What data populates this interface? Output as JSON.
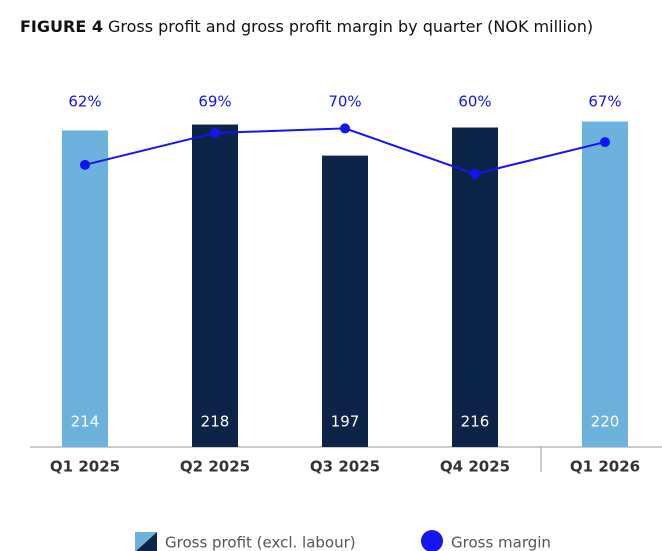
{
  "chart_data": {
    "type": "bar",
    "figure_label": "FIGURE 4",
    "title": "Gross profit and gross profit margin by quarter (NOK million)",
    "categories": [
      "Q1 2025",
      "Q2 2025",
      "Q3 2025",
      "Q4 2025",
      "Q1 2026"
    ],
    "series": [
      {
        "name": "Gross profit (excl. labour)",
        "type": "bar",
        "colors": [
          "#6cb2dc",
          "#0b2447",
          "#0b2447",
          "#0b2447",
          "#6cb2dc"
        ],
        "values": [
          214,
          218,
          197,
          216,
          220
        ]
      },
      {
        "name": "Gross margin",
        "type": "line",
        "axis": "y2",
        "color": "#1414f0",
        "values": [
          62,
          69,
          70,
          60,
          67
        ],
        "value_labels": [
          "62%",
          "69%",
          "70%",
          "60%",
          "67%"
        ]
      }
    ],
    "ylim": [
      0,
      240
    ],
    "y2lim": [
      0,
      78
    ]
  }
}
